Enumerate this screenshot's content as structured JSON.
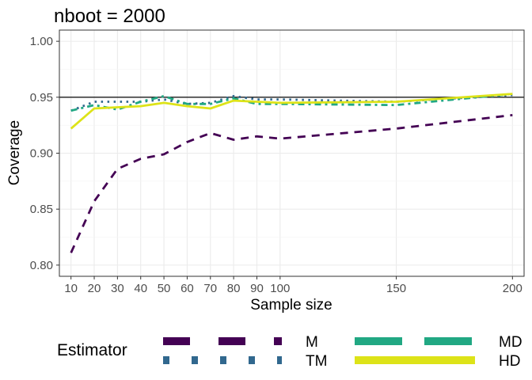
{
  "chart_data": {
    "type": "line",
    "title": "nboot = 2000",
    "xlabel": "Sample size",
    "ylabel": "Coverage",
    "xlim": [
      5,
      205
    ],
    "ylim": [
      0.79,
      1.01
    ],
    "x_ticks": [
      10,
      20,
      30,
      40,
      50,
      60,
      70,
      80,
      90,
      100,
      150,
      200
    ],
    "y_ticks": [
      0.8,
      0.85,
      0.9,
      0.95,
      1.0
    ],
    "y_tick_labels": [
      "0.80",
      "0.85",
      "0.90",
      "0.95",
      "1.00"
    ],
    "reference_line": 0.95,
    "grid": true,
    "legend_title": "Estimator",
    "legend_position": "bottom",
    "x": [
      10,
      20,
      30,
      40,
      50,
      60,
      70,
      80,
      90,
      100,
      150,
      200
    ],
    "series": [
      {
        "name": "M",
        "color": "#440154",
        "dash": "long-dash",
        "values": [
          0.811,
          0.857,
          0.886,
          0.895,
          0.899,
          0.91,
          0.918,
          0.912,
          0.915,
          0.913,
          0.922,
          0.934
        ]
      },
      {
        "name": "TM",
        "color": "#31688e",
        "dash": "dotted",
        "values": [
          0.938,
          0.946,
          0.946,
          0.946,
          0.948,
          0.944,
          0.945,
          0.951,
          0.948,
          0.948,
          0.946,
          0.952
        ]
      },
      {
        "name": "MD",
        "color": "#21a883",
        "dash": "dash",
        "values": [
          0.938,
          0.943,
          0.939,
          0.946,
          0.951,
          0.944,
          0.944,
          0.949,
          0.944,
          0.944,
          0.943,
          0.953
        ]
      },
      {
        "name": "HD",
        "color": "#dde318",
        "dash": "solid",
        "values": [
          0.922,
          0.94,
          0.941,
          0.942,
          0.945,
          0.942,
          0.94,
          0.947,
          0.946,
          0.945,
          0.946,
          0.953
        ]
      }
    ]
  }
}
